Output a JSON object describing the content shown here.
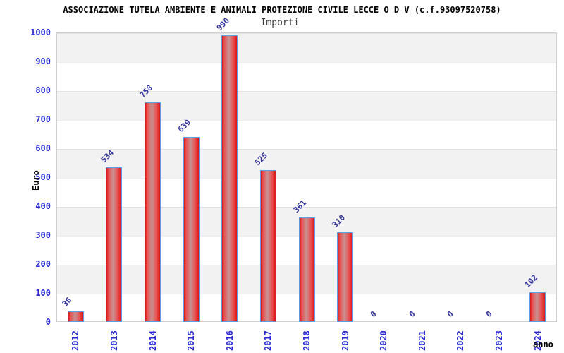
{
  "header": {
    "title": "ASSOCIAZIONE TUTELA AMBIENTE E ANIMALI PROTEZIONE CIVILE LECCE O D V (c.f.93097520758)",
    "subtitle": "Importi"
  },
  "axes": {
    "y_label": "Euro",
    "x_label": "anno"
  },
  "chart_data": {
    "type": "bar",
    "title": "ASSOCIAZIONE TUTELA AMBIENTE E ANIMALI PROTEZIONE CIVILE LECCE O D V (c.f.93097520758)",
    "subtitle": "Importi",
    "xlabel": "anno",
    "ylabel": "Euro",
    "categories": [
      "2012",
      "2013",
      "2014",
      "2015",
      "2016",
      "2017",
      "2018",
      "2019",
      "2020",
      "2021",
      "2022",
      "2023",
      "2024"
    ],
    "values": [
      36,
      534,
      758,
      639,
      990,
      525,
      361,
      310,
      0,
      0,
      0,
      0,
      102
    ],
    "ylim": [
      0,
      1000
    ],
    "ytick_step": 100,
    "grid": "horizontal-bands",
    "legend": "none",
    "colors": {
      "bar_edge_red": "#dd1414",
      "bar_mid_red": "#e85252",
      "bar_highlight": "#c79292",
      "bar_border": "#5b9ce6",
      "value_label": "#333399",
      "axis_tick_label": "#2a2ad0",
      "band_gray": "#f2f2f2",
      "band_white": "#ffffff",
      "title_text": "#000000",
      "subtitle_text": "#3c3c3c"
    }
  }
}
